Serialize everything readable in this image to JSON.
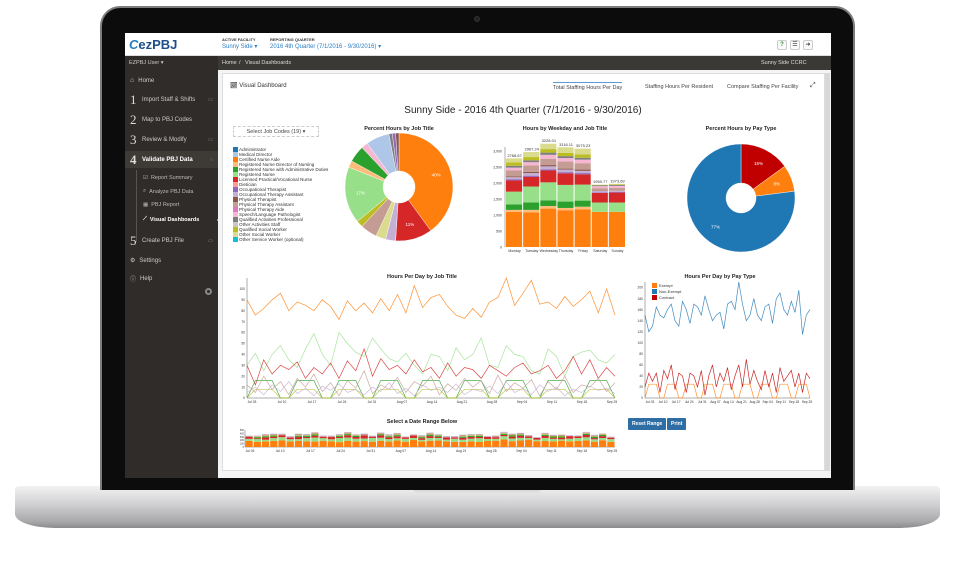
{
  "app": {
    "logo": "ezPBJ",
    "user_menu": "EZPBJ User ▾",
    "active_facility_label": "ACTIVE FACILITY",
    "active_facility": "Sunny Side ▾",
    "quarter_label": "REPORTING QUARTER",
    "quarter": "2016 4th Quarter (7/1/2016 - 9/30/2016) ▾",
    "header_icons": [
      "help-icon",
      "menu-icon",
      "logout-icon"
    ]
  },
  "sidebar": {
    "items": [
      {
        "label": "Home",
        "icon": "home-icon"
      },
      {
        "num": "1",
        "label": "Import Staff & Shifts"
      },
      {
        "num": "2",
        "label": "Map to PBJ Codes"
      },
      {
        "num": "3",
        "label": "Review & Modify"
      },
      {
        "num": "4",
        "label": "Validate PBJ Data"
      },
      {
        "num": "5",
        "label": "Create PBJ File"
      },
      {
        "label": "Settings",
        "icon": "gear-icon"
      },
      {
        "label": "Help",
        "icon": "help-circle-icon"
      }
    ],
    "subitems": [
      {
        "label": "Report Summary",
        "icon": "check-icon"
      },
      {
        "label": "Analyze PBJ Data",
        "icon": "search-icon"
      },
      {
        "label": "PBJ Report",
        "icon": "table-icon"
      },
      {
        "label": "Visual Dashboards",
        "icon": "chart-icon",
        "active": true
      }
    ]
  },
  "breadcrumb": {
    "home": "Home",
    "sep": "/",
    "current": "Visual Dashboards",
    "facility": "Sunny Side CCRC"
  },
  "dashboard": {
    "label": "Visual Dashboard",
    "tabs": [
      "Total Staffing Hours Per Day",
      "Staffing Hours Per Resident",
      "Compare Staffing Per Facility"
    ],
    "active_tab": 0,
    "title": "Sunny Side - 2016 4th Quarter (7/1/2016 - 9/30/2016)",
    "job_select": "Select Job Codes (19) ▾",
    "reset_button": "Reset Range",
    "print_button": "Print"
  },
  "job_codes": [
    {
      "name": "Administrator",
      "color": "#1f77b4"
    },
    {
      "name": "Medical Director",
      "color": "#aec7e8"
    },
    {
      "name": "Certified Nurse Aide",
      "color": "#ff7f0e"
    },
    {
      "name": "Registered Nurse Director of Nursing",
      "color": "#ffbb78"
    },
    {
      "name": "Registered Nurse with Administrative Duties",
      "color": "#2ca02c"
    },
    {
      "name": "Registered Nurse",
      "color": "#98df8a"
    },
    {
      "name": "Licensed Practical/Vocational Nurse",
      "color": "#d62728"
    },
    {
      "name": "Dietician",
      "color": "#ff9896"
    },
    {
      "name": "Occupational Therapist",
      "color": "#9467bd"
    },
    {
      "name": "Occupational Therapy Assistant",
      "color": "#c5b0d5"
    },
    {
      "name": "Physical Therapist",
      "color": "#8c564b"
    },
    {
      "name": "Physical Therapy Assistant",
      "color": "#c49c94"
    },
    {
      "name": "Physical Therapy Aide",
      "color": "#e377c2"
    },
    {
      "name": "Speech/Language Pathologist",
      "color": "#f7b6d2"
    },
    {
      "name": "Qualified Activities Professional",
      "color": "#7f7f7f"
    },
    {
      "name": "Other Activities Staff",
      "color": "#c7c7c7"
    },
    {
      "name": "Qualified Social Worker",
      "color": "#bcbd22"
    },
    {
      "name": "Other Social Worker",
      "color": "#dbdb8d"
    },
    {
      "name": "Other Service Worker (optional)",
      "color": "#17becf"
    }
  ],
  "chart_data": [
    {
      "type": "pie",
      "title": "Percent Hours by Job Title",
      "slices": [
        {
          "code": 2,
          "value": 40,
          "label": "40%"
        },
        {
          "code": 6,
          "value": 11,
          "label": "11%"
        },
        {
          "code": 9,
          "value": 3
        },
        {
          "code": 17,
          "value": 3
        },
        {
          "code": 11,
          "value": 5
        },
        {
          "code": 16,
          "value": 2
        },
        {
          "code": 5,
          "value": 17,
          "label": "17%"
        },
        {
          "code": 3,
          "value": 2
        },
        {
          "code": 4,
          "value": 5
        },
        {
          "code": 13,
          "value": 2
        },
        {
          "code": 1,
          "value": 7
        },
        {
          "code": 14,
          "value": 1
        },
        {
          "code": 8,
          "value": 1
        },
        {
          "code": 10,
          "value": 1
        }
      ]
    },
    {
      "type": "bar",
      "stacked": true,
      "title": "Hours by Weekday and Job Title",
      "categories": [
        "Monday",
        "Tuesday",
        "Wednesday",
        "Thursday",
        "Friday",
        "Saturday",
        "Sunday"
      ],
      "ylim": [
        0,
        3000
      ],
      "yticks": [
        "0",
        "500",
        "1,000",
        "1,500",
        "2,000",
        "2,500",
        "3,000"
      ],
      "totals": [
        "2768.67",
        "2967.24",
        "3228.01",
        "3116.11",
        "3075.23",
        "1950.77",
        "1973.69"
      ],
      "series": [
        {
          "code": 2,
          "values": [
            1100,
            1080,
            1200,
            1150,
            1180,
            1100,
            1100
          ]
        },
        {
          "code": 3,
          "values": [
            60,
            80,
            80,
            70,
            80,
            0,
            0
          ]
        },
        {
          "code": 4,
          "values": [
            170,
            230,
            180,
            200,
            190,
            0,
            0
          ]
        },
        {
          "code": 5,
          "values": [
            400,
            500,
            560,
            520,
            500,
            290,
            290
          ]
        },
        {
          "code": 6,
          "values": [
            350,
            300,
            370,
            360,
            320,
            300,
            310
          ]
        },
        {
          "code": 8,
          "values": [
            40,
            40,
            40,
            40,
            40,
            20,
            20
          ]
        },
        {
          "code": 9,
          "values": [
            60,
            80,
            90,
            80,
            70,
            40,
            40
          ]
        },
        {
          "code": 10,
          "values": [
            30,
            40,
            40,
            30,
            40,
            10,
            10
          ]
        },
        {
          "code": 11,
          "values": [
            180,
            200,
            200,
            220,
            200,
            80,
            80
          ]
        },
        {
          "code": 13,
          "values": [
            90,
            100,
            120,
            110,
            110,
            60,
            60
          ]
        },
        {
          "code": 14,
          "values": [
            60,
            60,
            70,
            60,
            60,
            30,
            30
          ]
        },
        {
          "code": 16,
          "values": [
            100,
            100,
            110,
            100,
            100,
            10,
            15
          ]
        },
        {
          "code": 17,
          "values": [
            128.67,
            157.24,
            168.01,
            176.11,
            185.23,
            10.77,
            18.69
          ]
        }
      ]
    },
    {
      "type": "pie",
      "title": "Percent Hours by Pay Type",
      "slices": [
        {
          "name": "Contract",
          "value": 15,
          "color": "#c00000",
          "label": "15%"
        },
        {
          "name": "Exempt",
          "value": 8,
          "color": "#ff7f0e",
          "label": "8%"
        },
        {
          "name": "Non-Exempt",
          "value": 77,
          "color": "#1f77b4",
          "label": "77%"
        }
      ]
    },
    {
      "type": "line",
      "title": "Hours Per Day by Job Title",
      "ylim": [
        0,
        110
      ],
      "yticks": [
        "0",
        "10",
        "20",
        "30",
        "40",
        "50",
        "60",
        "70",
        "80",
        "90",
        "100"
      ],
      "xticks": [
        "Jul 03",
        "Jul 10",
        "Jul 17",
        "Jul 24",
        "Jul 31",
        "Aug 07",
        "Aug 14",
        "Aug 21",
        "Aug 28",
        "Sep 04",
        "Sep 11",
        "Sep 18",
        "Sep 25"
      ],
      "series": [
        {
          "code": 2,
          "values": [
            90,
            76,
            82,
            90,
            96,
            80,
            88,
            85,
            80,
            90,
            84,
            72,
            89,
            80,
            87,
            78,
            91,
            80,
            95,
            78,
            103,
            83,
            92,
            95,
            84,
            76,
            73,
            82,
            74,
            88,
            92,
            110,
            85,
            96,
            108,
            86,
            88,
            82,
            93,
            84,
            90,
            98,
            78,
            100,
            76
          ]
        },
        {
          "code": 5,
          "values": [
            30,
            41,
            25,
            40,
            48,
            35,
            28,
            45,
            59,
            40,
            30,
            60,
            50,
            42,
            38,
            55,
            45,
            36,
            33,
            41,
            30,
            22,
            40,
            38,
            25,
            46,
            35,
            40,
            55,
            30,
            28,
            48,
            40,
            38,
            25,
            22,
            45,
            38,
            20,
            38,
            42,
            44,
            35,
            32,
            40
          ]
        },
        {
          "code": 6,
          "values": [
            30,
            12,
            35,
            22,
            30,
            26,
            33,
            18,
            28,
            22,
            32,
            18,
            34,
            25,
            45,
            20,
            36,
            26,
            30,
            22,
            35,
            24,
            28,
            18,
            32,
            20,
            28,
            26,
            18,
            30,
            25,
            20,
            28,
            32,
            22,
            25,
            30,
            18,
            25,
            38,
            22,
            35,
            18,
            28,
            20
          ]
        },
        {
          "code": 4,
          "values": [
            0,
            16,
            16,
            16,
            0,
            0,
            16,
            16,
            16,
            0,
            0,
            16,
            16,
            16,
            0,
            0,
            16,
            16,
            16,
            0,
            0,
            16,
            16,
            16,
            0,
            0,
            16,
            16,
            16,
            0,
            0,
            16,
            16,
            16,
            0,
            0,
            16,
            16,
            16,
            0,
            0,
            16,
            16,
            16,
            0
          ]
        },
        {
          "code": 16,
          "values": [
            0,
            8,
            8,
            8,
            0,
            0,
            8,
            8,
            8,
            0,
            0,
            8,
            8,
            8,
            0,
            0,
            8,
            8,
            8,
            0,
            0,
            8,
            8,
            8,
            0,
            0,
            8,
            8,
            8,
            0,
            0,
            8,
            8,
            8,
            0,
            0,
            8,
            8,
            8,
            0,
            0,
            8,
            8,
            8,
            0
          ]
        },
        {
          "code": 11,
          "values": [
            12,
            5,
            20,
            8,
            15,
            3,
            18,
            10,
            22,
            6,
            14,
            2,
            16,
            9,
            25,
            4,
            12,
            8,
            19,
            5,
            15,
            11,
            20,
            3,
            13,
            7,
            18,
            10,
            16,
            4,
            21,
            6,
            14,
            9,
            17,
            2,
            15,
            8,
            20,
            5,
            12,
            10,
            18,
            6,
            14
          ]
        },
        {
          "code": 9,
          "values": [
            5,
            10,
            3,
            12,
            6,
            15,
            4,
            9,
            2,
            11,
            7,
            13,
            5,
            8,
            3,
            10,
            6,
            14,
            4,
            9,
            2,
            12,
            7,
            10,
            5,
            13,
            3,
            8,
            6,
            11,
            4,
            15,
            5,
            9,
            3,
            12,
            6,
            10,
            2,
            8,
            5,
            11,
            7,
            9,
            4
          ]
        }
      ]
    },
    {
      "type": "bar",
      "stacked": true,
      "title": "Select a Date Range Below",
      "role": "range-brush",
      "xticks": [
        "Jul 03",
        "Jul 10",
        "Jul 17",
        "Jul 24",
        "Jul 31",
        "Aug 07",
        "Aug 14",
        "Aug 21",
        "Aug 28",
        "Sep 04",
        "Sep 11",
        "Sep 18",
        "Sep 25"
      ],
      "yticks": [
        "0",
        "100",
        "200",
        "300",
        "400",
        "500"
      ],
      "ylim": [
        0,
        500
      ]
    },
    {
      "type": "line",
      "title": "Hours Per Day by Pay Type",
      "ylim": [
        0,
        210
      ],
      "yticks": [
        "0",
        "20",
        "40",
        "60",
        "80",
        "100",
        "120",
        "140",
        "160",
        "180",
        "200"
      ],
      "xticks": [
        "Jul 03",
        "Jul 10",
        "Jul 17",
        "Jul 24",
        "Jul 31",
        "Aug 07",
        "Aug 14",
        "Aug 21",
        "Aug 28",
        "Sep 04",
        "Sep 11",
        "Sep 18",
        "Sep 25"
      ],
      "legend": "top-left",
      "series": [
        {
          "name": "Exempt",
          "color": "#ff7f0e",
          "values": [
            0,
            25,
            25,
            25,
            0,
            0,
            25,
            25,
            25,
            0,
            0,
            25,
            25,
            25,
            0,
            0,
            25,
            25,
            25,
            0,
            0,
            25,
            25,
            25,
            0,
            0,
            25,
            25,
            25,
            0,
            0,
            25,
            25,
            25,
            0,
            0,
            25,
            25,
            25,
            0,
            0,
            25,
            25,
            25,
            0
          ]
        },
        {
          "name": "Non-Exempt",
          "color": "#1f77b4",
          "values": [
            150,
            120,
            130,
            165,
            150,
            145,
            160,
            170,
            140,
            130,
            175,
            160,
            135,
            170,
            165,
            150,
            185,
            160,
            140,
            150,
            155,
            125,
            170,
            175,
            160,
            210,
            170,
            140,
            150,
            180,
            150,
            140,
            165,
            170,
            135,
            180,
            190,
            160,
            150,
            175,
            155,
            195,
            115,
            150,
            160
          ]
        },
        {
          "name": "Contract",
          "color": "#c00000",
          "values": [
            20,
            45,
            30,
            45,
            10,
            50,
            35,
            60,
            15,
            45,
            40,
            10,
            45,
            40,
            20,
            50,
            5,
            40,
            60,
            20,
            45,
            30,
            55,
            15,
            40,
            60,
            20,
            70,
            25,
            50,
            30,
            15,
            50,
            20,
            45,
            10,
            55,
            30,
            40,
            50,
            20,
            45,
            10,
            45,
            35
          ]
        }
      ]
    }
  ]
}
